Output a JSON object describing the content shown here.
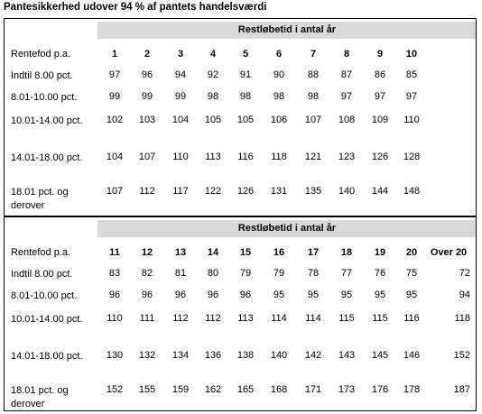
{
  "title": "Pantesikkerhed udover 94 % af pantets handelsværdi",
  "sections": [
    {
      "header": "Restløbetid i antal år",
      "corner": "Rentefod p.a.",
      "columns": [
        "1",
        "2",
        "3",
        "4",
        "5",
        "6",
        "7",
        "8",
        "9",
        "10"
      ],
      "rows": [
        {
          "label": "Indtil 8.00 pct.",
          "values": [
            97,
            96,
            94,
            92,
            91,
            90,
            88,
            87,
            86,
            85
          ]
        },
        {
          "label": "8.01-10.00 pct.",
          "values": [
            99,
            99,
            99,
            98,
            98,
            98,
            98,
            97,
            97,
            97
          ]
        },
        {
          "label": "10.01-14.00 pct.",
          "values": [
            102,
            103,
            104,
            105,
            105,
            106,
            107,
            108,
            109,
            110
          ]
        },
        {
          "label": "14.01-18.00 pct.",
          "values": [
            104,
            107,
            110,
            113,
            116,
            118,
            121,
            123,
            126,
            128
          ]
        },
        {
          "label": "18.01 pct. og derover",
          "values": [
            107,
            112,
            117,
            122,
            126,
            131,
            135,
            140,
            144,
            148
          ]
        }
      ]
    },
    {
      "header": "Restløbetid i antal år",
      "corner": "Rentefod p.a.",
      "columns": [
        "11",
        "12",
        "13",
        "14",
        "15",
        "16",
        "17",
        "18",
        "19",
        "20",
        "Over 20"
      ],
      "rows": [
        {
          "label": "Indtil 8.00 pct.",
          "values": [
            83,
            82,
            81,
            80,
            79,
            79,
            78,
            77,
            76,
            75,
            72
          ]
        },
        {
          "label": "8.01-10.00 pct.",
          "values": [
            96,
            96,
            96,
            96,
            96,
            95,
            95,
            95,
            95,
            95,
            94
          ]
        },
        {
          "label": "10.01-14.00 pct.",
          "values": [
            110,
            111,
            112,
            112,
            113,
            114,
            114,
            115,
            115,
            116,
            118
          ]
        },
        {
          "label": "14.01-18.00 pct.",
          "values": [
            130,
            132,
            134,
            136,
            138,
            140,
            142,
            143,
            145,
            146,
            152
          ]
        },
        {
          "label": "18.01 pct. og derover",
          "values": [
            152,
            155,
            159,
            162,
            165,
            168,
            171,
            173,
            176,
            178,
            187
          ]
        }
      ]
    }
  ]
}
